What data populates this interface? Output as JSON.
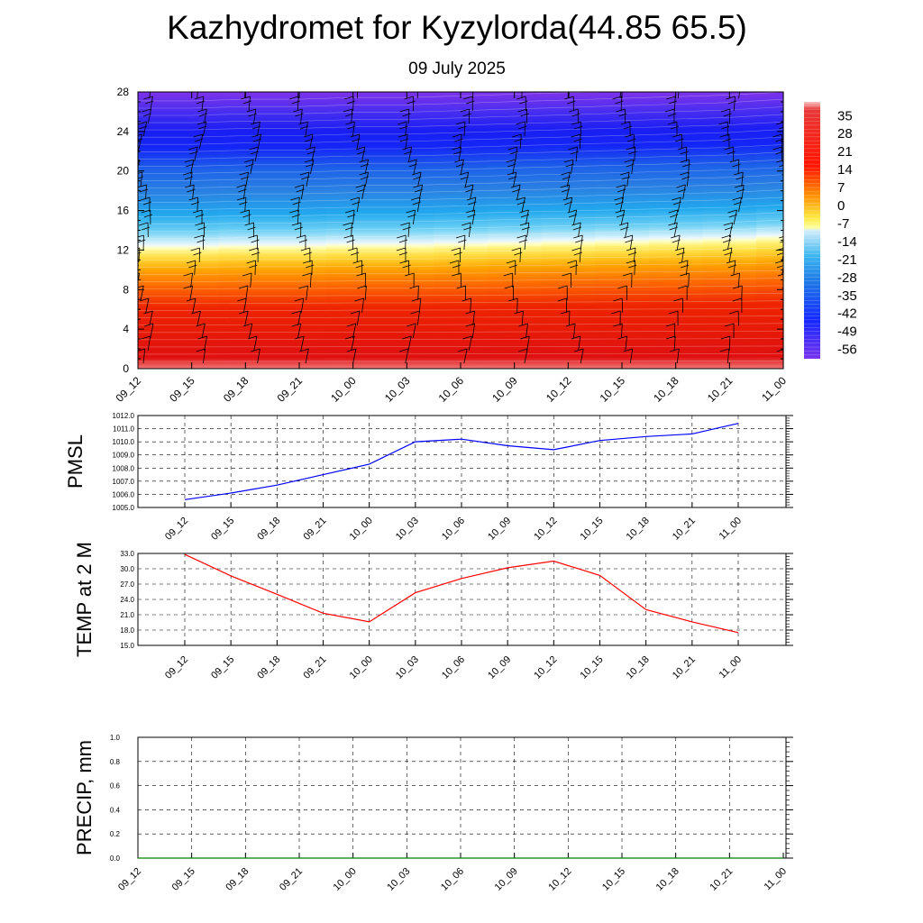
{
  "page": {
    "title": "Kazhydromet for Kyzylorda(44.85 65.5)",
    "subtitle": "09 July 2025"
  },
  "chart_data": [
    {
      "type": "heatmap",
      "name": "temperature-height-section",
      "x_ticks": [
        "09_12",
        "09_15",
        "09_18",
        "09_21",
        "10_00",
        "10_03",
        "10_06",
        "10_09",
        "10_12",
        "10_15",
        "10_18",
        "10_21",
        "11_00"
      ],
      "y_ticks": [
        "0",
        "4",
        "8",
        "12",
        "16",
        "20",
        "24",
        "28"
      ],
      "ylim": [
        0,
        28
      ],
      "colorbar_labels": [
        "35",
        "28",
        "21",
        "14",
        "7",
        "0",
        "-7",
        "-14",
        "-21",
        "-28",
        "-35",
        "-42",
        "-49",
        "-56"
      ],
      "colorbar_range": [
        -60,
        40
      ],
      "freezing_level": [
        12.4,
        12.4,
        12.5,
        12.5,
        12.6,
        12.6,
        12.7,
        12.8,
        12.9,
        13.0,
        13.1,
        13.2,
        13.4
      ],
      "has_wind_barbs": true
    },
    {
      "type": "line",
      "name": "pmsl",
      "ylabel": "PMSL",
      "x_ticks": [
        "09_12",
        "09_15",
        "09_18",
        "09_21",
        "10_00",
        "10_03",
        "10_06",
        "10_09",
        "10_12",
        "10_15",
        "10_18",
        "10_21",
        "11_00"
      ],
      "y_ticks": [
        "1005.0",
        "1006.0",
        "1007.0",
        "1008.0",
        "1009.0",
        "1010.0",
        "1011.0",
        "1012.0"
      ],
      "ylim": [
        1005,
        1012
      ],
      "values": [
        1005.6,
        1006.1,
        1006.7,
        1007.5,
        1008.3,
        1010.0,
        1010.2,
        1009.7,
        1009.4,
        1010.1,
        1010.4,
        1010.6,
        1011.4
      ],
      "color": "#0000ff",
      "grid": true
    },
    {
      "type": "line",
      "name": "temp-2m",
      "ylabel": "TEMP at 2 M",
      "x_ticks": [
        "09_12",
        "09_15",
        "09_18",
        "09_21",
        "10_00",
        "10_03",
        "10_06",
        "10_09",
        "10_12",
        "10_15",
        "10_18",
        "10_21",
        "11_00"
      ],
      "y_ticks": [
        "15.0",
        "18.0",
        "21.0",
        "24.0",
        "27.0",
        "30.0",
        "33.0"
      ],
      "ylim": [
        15,
        33
      ],
      "values": [
        32.8,
        28.6,
        25.0,
        21.3,
        19.6,
        25.3,
        28.1,
        30.2,
        31.5,
        28.7,
        22.0,
        19.6,
        17.5
      ],
      "color": "#ff0000",
      "grid": true
    },
    {
      "type": "line",
      "name": "precip",
      "ylabel": "PRECIP, mm",
      "x_ticks": [
        "09_12",
        "09_15",
        "09_18",
        "09_21",
        "10_00",
        "10_03",
        "10_06",
        "10_09",
        "10_12",
        "10_15",
        "10_18",
        "10_21",
        "11_00"
      ],
      "y_ticks": [
        "0.0",
        "0.2",
        "0.4",
        "0.6",
        "0.8",
        "1.0"
      ],
      "ylim": [
        0,
        1
      ],
      "values": [
        0,
        0,
        0,
        0,
        0,
        0,
        0,
        0,
        0,
        0,
        0,
        0,
        0
      ],
      "color": "#008000",
      "grid": true
    }
  ]
}
